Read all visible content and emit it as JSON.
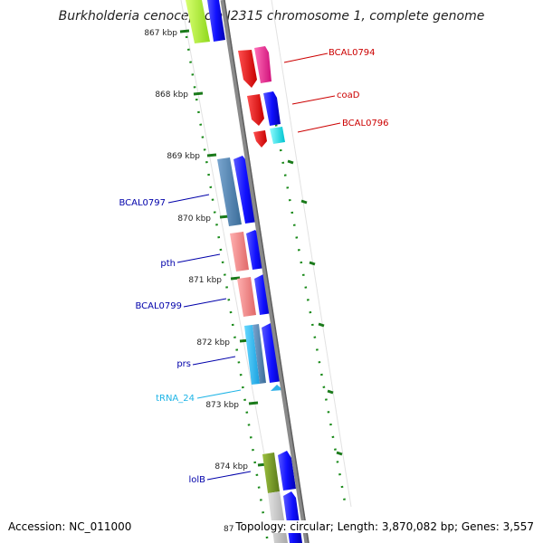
{
  "title": "Burkholderia cenocepacia J2315 chromosome 1, complete genome",
  "accession": "Accession: NC_011000",
  "topology": "Topology: circular; Length: 3,870,082 bp; Genes: 3,557",
  "colors": {
    "backbone": "#8c8c8c",
    "tick": "#2e7d32",
    "gene_forward": "#0000ff",
    "red_gene": "#ff0000",
    "magenta_gene": "#ff1493",
    "cyan_gene": "#00e5ee",
    "steelblue_gene": "#4682b4",
    "pink_gene": "#f08080",
    "olive_gene": "#6b8e23",
    "lime_gene": "#adff2f",
    "grey_gene": "#c0c0c0",
    "label_red": "#cc0000",
    "label_blue": "#0000aa",
    "label_cyan": "#1eb4e6"
  },
  "scale_labels": [
    "867 kbp",
    "868 kbp",
    "869 kbp",
    "870 kbp",
    "871 kbp",
    "872 kbp",
    "873 kbp",
    "874 kbp",
    "87"
  ],
  "gene_labels": [
    {
      "text": "BCAL0794",
      "color": "label_red"
    },
    {
      "text": "coaD",
      "color": "label_red"
    },
    {
      "text": "BCAL0796",
      "color": "label_red"
    },
    {
      "text": "BCAL0797",
      "color": "label_blue"
    },
    {
      "text": "pth",
      "color": "label_blue"
    },
    {
      "text": "BCAL0799",
      "color": "label_blue"
    },
    {
      "text": "prs",
      "color": "label_blue"
    },
    {
      "text": "tRNA_24",
      "color": "label_cyan"
    },
    {
      "text": "lolB",
      "color": "label_blue"
    }
  ]
}
